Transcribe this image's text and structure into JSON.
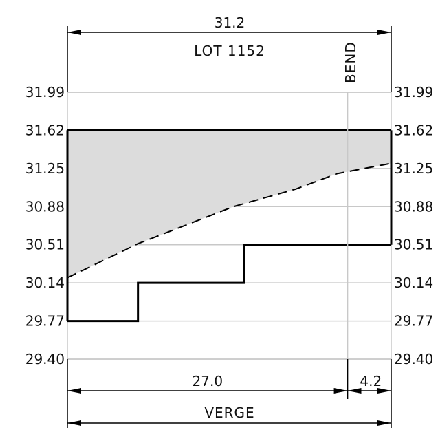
{
  "drawing": {
    "title": "LOT 1152",
    "total_width_label": "31.2",
    "segment_labels": [
      "27.0",
      "4.2"
    ],
    "verge_label": "VERGE",
    "bend_label": "BEND",
    "y_ticks": [
      "31.99",
      "31.62",
      "31.25",
      "30.88",
      "30.51",
      "30.14",
      "29.77",
      "29.40"
    ]
  },
  "chart_data": {
    "type": "line",
    "ylim": [
      29.4,
      31.99
    ],
    "xlim": [
      0,
      31.2
    ],
    "bend_at": 27.0,
    "top_level": 31.62,
    "fence_steps": [
      {
        "x": 0,
        "y": 29.77
      },
      {
        "x": 6.8,
        "y": 29.77
      },
      {
        "x": 6.8,
        "y": 30.14
      },
      {
        "x": 17.0,
        "y": 30.14
      },
      {
        "x": 17.0,
        "y": 30.51
      },
      {
        "x": 31.2,
        "y": 30.51
      }
    ],
    "ground_profile": [
      {
        "x": 0,
        "y": 30.19
      },
      {
        "x": 6.8,
        "y": 30.52
      },
      {
        "x": 16.0,
        "y": 30.88
      },
      {
        "x": 22.0,
        "y": 31.05
      },
      {
        "x": 26.0,
        "y": 31.2
      },
      {
        "x": 31.2,
        "y": 31.3
      }
    ],
    "colors": {
      "fill": "#dcdcdc",
      "grid": "#c8c8c8",
      "line": "#000000"
    }
  }
}
